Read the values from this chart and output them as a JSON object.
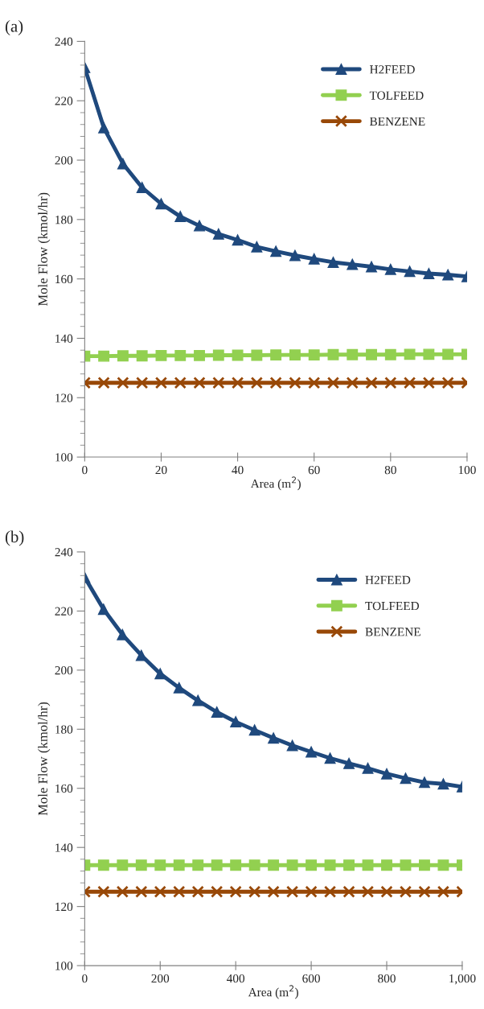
{
  "chart_data": [
    {
      "type": "line",
      "title": "(a)",
      "xlabel": "Area (m$^{2}$)",
      "ylabel": "Mole Flow (kmol/hr)",
      "x": [
        0,
        5,
        10,
        15,
        20,
        25,
        30,
        35,
        40,
        45,
        50,
        55,
        60,
        65,
        70,
        75,
        80,
        85,
        90,
        95,
        100
      ],
      "series": [
        {
          "name": "H2FEED",
          "color": "#1f497d",
          "marker": "triangle",
          "values": [
            231.2,
            210.9,
            198.8,
            190.8,
            185.3,
            181.0,
            177.9,
            175.1,
            173.1,
            170.8,
            169.3,
            167.9,
            166.7,
            165.6,
            164.9,
            164.1,
            163.2,
            162.5,
            161.8,
            161.4,
            160.8
          ]
        },
        {
          "name": "TOLFEED",
          "color": "#92d050",
          "marker": "square",
          "values": [
            134.0,
            134.0,
            134.1,
            134.1,
            134.2,
            134.2,
            134.2,
            134.3,
            134.3,
            134.3,
            134.4,
            134.4,
            134.4,
            134.5,
            134.5,
            134.5,
            134.5,
            134.6,
            134.6,
            134.6,
            134.6
          ]
        },
        {
          "name": "BENZENE",
          "color": "#984807",
          "marker": "cross",
          "values": [
            125,
            125,
            125,
            125,
            125,
            125,
            125,
            125,
            125,
            125,
            125,
            125,
            125,
            125,
            125,
            125,
            125,
            125,
            125,
            125,
            125
          ]
        }
      ],
      "xlim": [
        0,
        100
      ],
      "xticks": [
        0,
        20,
        40,
        60,
        80,
        100
      ],
      "ylim": [
        100,
        240
      ],
      "yticks": [
        100,
        120,
        140,
        160,
        180,
        200,
        220,
        240
      ],
      "grid": false,
      "legend": "top right"
    },
    {
      "type": "line",
      "title": "(b)",
      "xlabel": "Area (m$^{2}$)",
      "ylabel": "Mole Flow (kmol/hr)",
      "x": [
        0,
        50,
        100,
        150,
        200,
        250,
        300,
        350,
        400,
        450,
        500,
        550,
        600,
        650,
        700,
        750,
        800,
        850,
        900,
        950,
        1000
      ],
      "series": [
        {
          "name": "H2FEED",
          "color": "#1f497d",
          "marker": "triangle",
          "values": [
            231.4,
            220.6,
            212.0,
            205.0,
            198.8,
            194.0,
            189.7,
            185.8,
            182.5,
            179.7,
            177.0,
            174.5,
            172.3,
            170.2,
            168.4,
            166.8,
            164.9,
            163.4,
            162.0,
            161.5,
            160.5
          ]
        },
        {
          "name": "TOLFEED",
          "color": "#92d050",
          "marker": "square",
          "values": [
            134,
            134,
            134,
            134,
            134,
            134,
            134,
            134,
            134,
            134,
            134,
            134,
            134,
            134,
            134,
            134,
            134,
            134,
            134,
            134,
            134
          ]
        },
        {
          "name": "BENZENE",
          "color": "#984807",
          "marker": "cross",
          "values": [
            125,
            125,
            125,
            125,
            125,
            125,
            125,
            125,
            125,
            125,
            125,
            125,
            125,
            125,
            125,
            125,
            125,
            125,
            125,
            125,
            125
          ]
        }
      ],
      "xlim": [
        0,
        1000
      ],
      "xticks": [
        0,
        200,
        400,
        600,
        800,
        {
          "value": 1000,
          "label": "1,000"
        }
      ],
      "ylim": [
        100,
        240
      ],
      "yticks": [
        100,
        120,
        140,
        160,
        180,
        200,
        220,
        240
      ],
      "grid": false,
      "legend": "top right"
    }
  ]
}
